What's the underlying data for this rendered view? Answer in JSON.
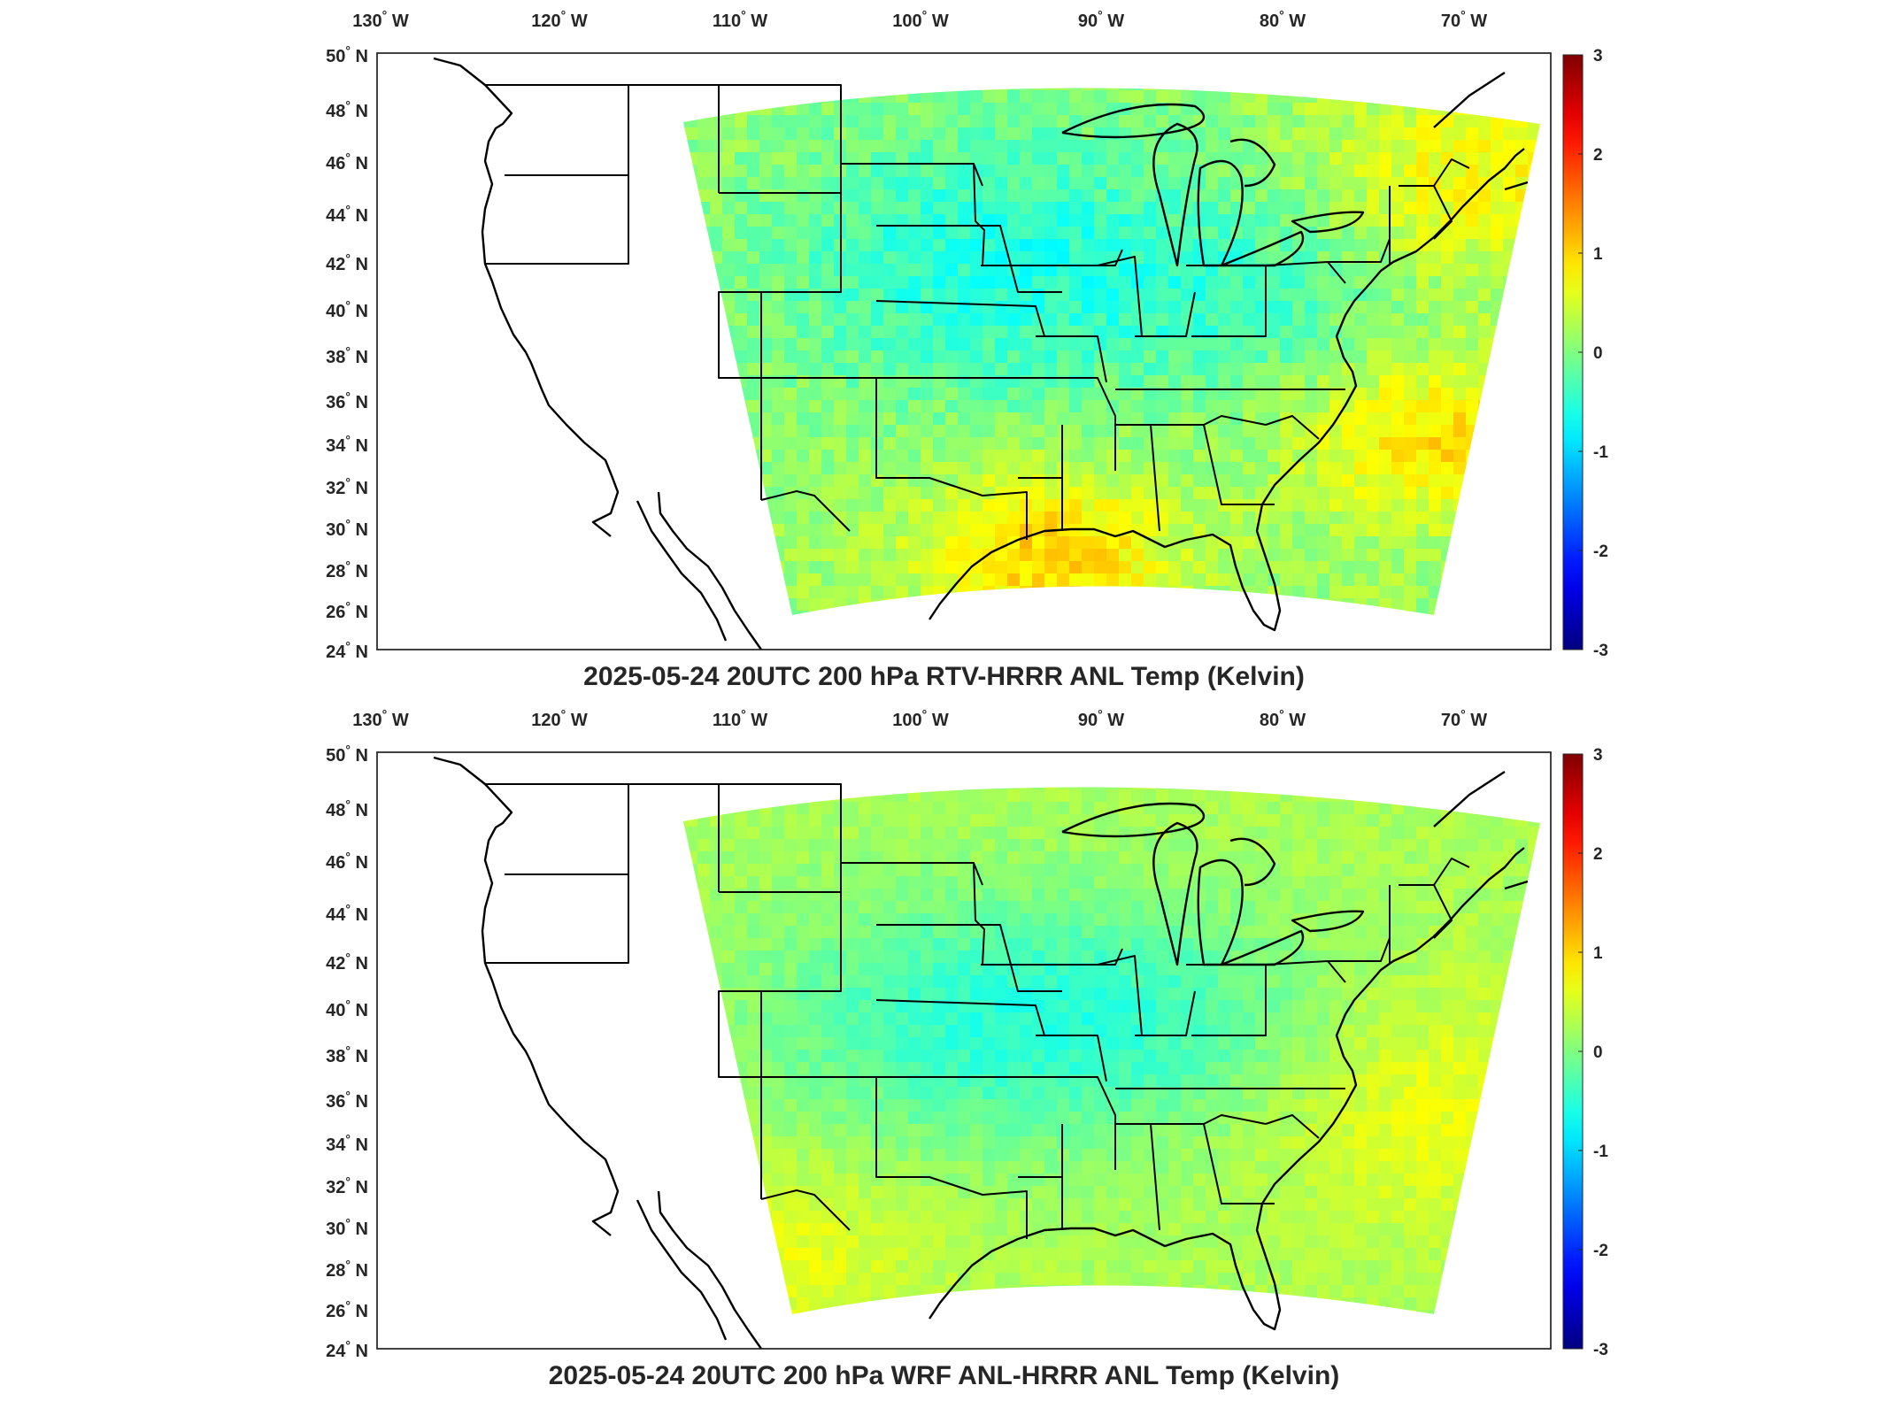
{
  "panels": [
    {
      "title": "2025-05-24 20UTC 200 hPa RTV-HRRR ANL Temp (Kelvin)",
      "pattern": "rtv"
    },
    {
      "title": "2025-05-24 20UTC 200 hPa WRF ANL-HRRR ANL Temp (Kelvin)",
      "pattern": "wrf"
    }
  ],
  "map": {
    "lon_ticks": [
      "130",
      "120",
      "110",
      "100",
      "90",
      "80",
      "70"
    ],
    "lon_hemisphere": "W",
    "lat_ticks": [
      "50",
      "48",
      "46",
      "44",
      "42",
      "40",
      "38",
      "36",
      "34",
      "32",
      "30",
      "28",
      "26",
      "24"
    ],
    "lat_hemisphere": "N",
    "degree_symbol": "°"
  },
  "colorbar": {
    "ticks": [
      "3",
      "2",
      "1",
      "0",
      "-1",
      "-2",
      "-3"
    ],
    "range": [
      -3,
      3
    ],
    "colormap": "jet",
    "colors": [
      "#00008f",
      "#0000ff",
      "#00ffff",
      "#ffff00",
      "#ff0000",
      "#800000"
    ]
  },
  "field_colors": {
    "background": "#ffffff",
    "cyan": "#2ee6e6",
    "green": "#7ef0a0",
    "yellow": "#e8f05a",
    "orange": "#f2a030"
  }
}
